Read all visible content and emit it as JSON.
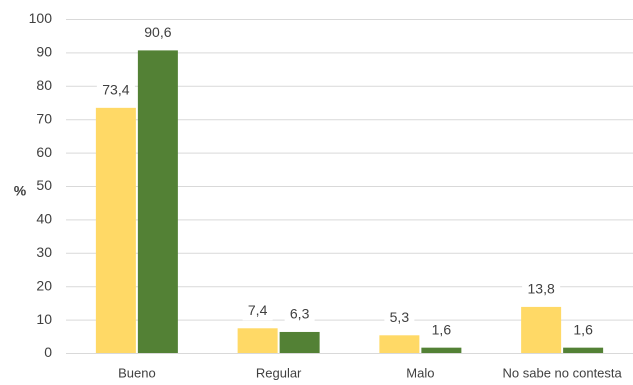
{
  "chart_data": {
    "type": "bar",
    "title": "",
    "xlabel": "",
    "ylabel": "%",
    "categories": [
      "Bueno",
      "Regular",
      "Malo",
      "No sabe no contesta"
    ],
    "series": [
      {
        "values": [
          73.4,
          7.4,
          5.3,
          13.8
        ],
        "color": "#ffd966"
      },
      {
        "values": [
          90.6,
          6.3,
          1.6,
          1.6
        ],
        "color": "#538135"
      }
    ],
    "data_labels": [
      [
        "73,4",
        "7,4",
        "5,3",
        "13,8"
      ],
      [
        "90,6",
        "6,3",
        "1,6",
        "1,6"
      ]
    ],
    "ylim": [
      0,
      100
    ],
    "yticks": [
      0,
      10,
      20,
      30,
      40,
      50,
      60,
      70,
      80,
      90,
      100
    ],
    "grid": true,
    "legend": "none"
  }
}
